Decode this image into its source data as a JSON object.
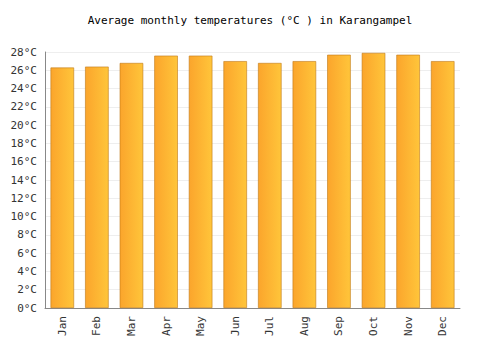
{
  "chart_data": {
    "type": "bar",
    "title": "Average monthly temperatures (°C ) in Karangampel",
    "categories": [
      "Jan",
      "Feb",
      "Mar",
      "Apr",
      "May",
      "Jun",
      "Jul",
      "Aug",
      "Sep",
      "Oct",
      "Nov",
      "Dec"
    ],
    "values": [
      26.3,
      26.4,
      26.8,
      27.6,
      27.6,
      27.0,
      26.8,
      27.0,
      27.7,
      27.9,
      27.7,
      27.0
    ],
    "color": "#fba52c",
    "ylim": [
      0,
      28
    ],
    "yticks": [
      {
        "value": 0,
        "label": "0°C"
      },
      {
        "value": 2,
        "label": "2°C"
      },
      {
        "value": 4,
        "label": "4°C"
      },
      {
        "value": 6,
        "label": "6°C"
      },
      {
        "value": 8,
        "label": "8°C"
      },
      {
        "value": 10,
        "label": "10°C"
      },
      {
        "value": 12,
        "label": "12°C"
      },
      {
        "value": 14,
        "label": "14°C"
      },
      {
        "value": 16,
        "label": "16°C"
      },
      {
        "value": 18,
        "label": "18°C"
      },
      {
        "value": 20,
        "label": "20°C"
      },
      {
        "value": 22,
        "label": "22°C"
      },
      {
        "value": 24,
        "label": "24°C"
      },
      {
        "value": 26,
        "label": "26°C"
      },
      {
        "value": 28,
        "label": "28°C"
      }
    ],
    "grid": true
  }
}
